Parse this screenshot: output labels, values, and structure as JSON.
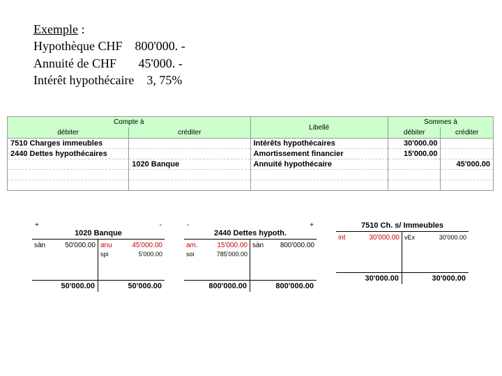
{
  "intro": {
    "title": "Exemple",
    "line1_label": "Hypothèque CHF",
    "line1_value": "800'000. -",
    "line2_label": "Annuité de CHF",
    "line2_value": "45'000. -",
    "line3_label": "Intérêt hypothécaire",
    "line3_value": "3, 75%"
  },
  "journal": {
    "header_compte": "Compte à",
    "header_debiter": "débiter",
    "header_crediter": "créditer",
    "header_libelle": "Libellé",
    "header_sommes": "Sommes à",
    "rows": [
      {
        "debit": "7510 Charges immeubles",
        "credit": "",
        "libelle": "Intérêts hypothécaires",
        "sd": "30'000.00",
        "sc": ""
      },
      {
        "debit": "2440 Dettes hypothécaires",
        "credit": "",
        "libelle": "Amortissement financier",
        "sd": "15'000.00",
        "sc": ""
      },
      {
        "debit": "",
        "credit": "1020 Banque",
        "libelle": "Annuité hypothécaire",
        "sd": "",
        "sc": "45'000.00"
      },
      {
        "debit": "",
        "credit": "",
        "libelle": "",
        "sd": "",
        "sc": ""
      },
      {
        "debit": "",
        "credit": "",
        "libelle": "",
        "sd": "",
        "sc": ""
      }
    ]
  },
  "accounts": [
    {
      "plus": "+",
      "minus": "-",
      "title": "1020 Banque",
      "left": [
        {
          "label": "sàn",
          "amount": "50'000.00",
          "cls": ""
        }
      ],
      "right": [
        {
          "label": "anu",
          "amount": "45'000.00",
          "cls": "red"
        },
        {
          "label": "spi",
          "amount": "5'000.00",
          "cls": "small"
        }
      ],
      "total_left": "50'000.00",
      "total_right": "50'000.00"
    },
    {
      "plus": "-",
      "minus": "+",
      "title": "2440 Dettes hypoth.",
      "left": [
        {
          "label": "am.",
          "amount": "15'000.00",
          "cls": "red"
        },
        {
          "label": "soi",
          "amount": "785'000.00",
          "cls": "small"
        }
      ],
      "right": [
        {
          "label": "sàn",
          "amount": "800'000.00",
          "cls": ""
        }
      ],
      "total_left": "800'000.00",
      "total_right": "800'000.00"
    },
    {
      "plus": "",
      "minus": "",
      "title": "7510 Ch. s/ Immeubles",
      "left": [
        {
          "label": "int",
          "amount": "30'000.00",
          "cls": "red"
        }
      ],
      "right": [
        {
          "label": "vEx",
          "amount": "30'000.00",
          "cls": "small"
        }
      ],
      "total_left": "30'000.00",
      "total_right": "30'000.00"
    }
  ]
}
